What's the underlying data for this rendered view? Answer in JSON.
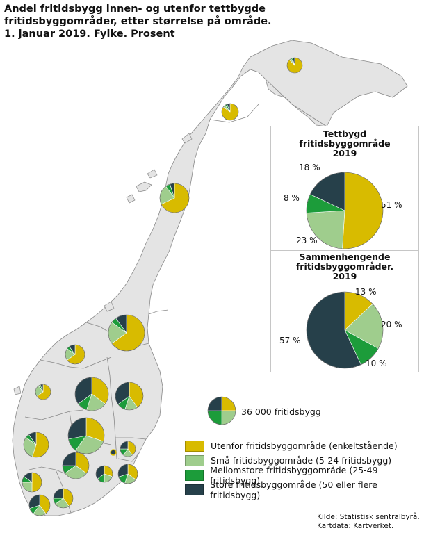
{
  "title": {
    "line1": "Andel fritidsbygg innen- og utenfor tettbygde",
    "line2": "fritidsbyggområder, etter størrelse på område.",
    "line3": "1. januar 2019. Fylke. Prosent"
  },
  "colors": {
    "utenfor": "#d8bb00",
    "sma": "#9fcd8d",
    "mellom": "#1c9c3a",
    "store": "#26404a",
    "land": "#e4e4e4",
    "border": "#888888"
  },
  "inset1": {
    "title_line1": "Tettbygd",
    "title_line2": "fritidsbyggområde",
    "title_line3": "2019",
    "labels": [
      "51 %",
      "23 %",
      "8 %",
      "18 %"
    ]
  },
  "inset2": {
    "title_line1": "Sammenhengende",
    "title_line2": "fritidsbyggområder.",
    "title_line3": "2019",
    "labels": [
      "13 %",
      "20 %",
      "10 %",
      "57 %"
    ]
  },
  "chart_data": [
    {
      "type": "pie",
      "title": "Tettbygd fritidsbyggområde 2019",
      "categories": [
        "Utenfor fritidsbyggområde (enkeltstående)",
        "Små fritidsbyggområde (5-24 fritidsbygg)",
        "Mellomstore fritidsbyggområde (25-49 fritidsbygg)",
        "Store fritidsbyggområde (50 eller flere fritidsbygg)"
      ],
      "values": [
        51,
        23,
        8,
        18
      ]
    },
    {
      "type": "pie",
      "title": "Sammenhengende fritidsbyggområder. 2019",
      "categories": [
        "Utenfor fritidsbyggområde (enkeltstående)",
        "Små fritidsbyggområde (5-24 fritidsbygg)",
        "Mellomstore fritidsbyggområde (25-49 fritidsbygg)",
        "Store fritidsbyggområde (50 eller flere fritidsbygg)"
      ],
      "values": [
        13,
        20,
        10,
        57
      ]
    }
  ],
  "size_legend": {
    "label": "36 000 fritidsbygg",
    "values": [
      25,
      25,
      25,
      25
    ]
  },
  "legend": [
    {
      "key": "utenfor",
      "label": "Utenfor fritidsbyggområde (enkeltstående)"
    },
    {
      "key": "sma",
      "label": "Små fritidsbyggområde (5-24 fritidsbygg)"
    },
    {
      "key": "mellom",
      "label": "Mellomstore fritidsbyggområde (25-49 fritidsbygg)"
    },
    {
      "key": "store",
      "label": "Store fritidsbyggområde (50 eller flere fritidsbygg)"
    }
  ],
  "source": {
    "line1": "Kilde: Statistisk sentralbyrå.",
    "line2": "Kartdata: Kartverket."
  },
  "county_pies": [
    {
      "name": "finnmark",
      "values": [
        88,
        4,
        3,
        5
      ]
    },
    {
      "name": "troms",
      "values": [
        85,
        5,
        4,
        6
      ]
    },
    {
      "name": "nordland",
      "values": [
        68,
        22,
        5,
        5
      ]
    },
    {
      "name": "trondelag",
      "values": [
        65,
        20,
        5,
        10
      ]
    },
    {
      "name": "more-og-romsdal",
      "values": [
        65,
        20,
        5,
        10
      ]
    },
    {
      "name": "sogn-og-fjordane",
      "values": [
        65,
        25,
        4,
        6
      ]
    },
    {
      "name": "oppland",
      "values": [
        35,
        20,
        10,
        35
      ]
    },
    {
      "name": "hedmark",
      "values": [
        40,
        15,
        10,
        35
      ]
    },
    {
      "name": "hordaland",
      "values": [
        55,
        30,
        5,
        10
      ]
    },
    {
      "name": "buskerud",
      "values": [
        30,
        30,
        12,
        28
      ]
    },
    {
      "name": "akershus",
      "values": [
        40,
        20,
        15,
        25
      ]
    },
    {
      "name": "oslo",
      "values": [
        60,
        20,
        10,
        10
      ]
    },
    {
      "name": "ostfold",
      "values": [
        35,
        20,
        15,
        30
      ]
    },
    {
      "name": "rogaland",
      "values": [
        50,
        25,
        10,
        15
      ]
    },
    {
      "name": "telemark",
      "values": [
        35,
        30,
        10,
        25
      ]
    },
    {
      "name": "vestfold",
      "values": [
        30,
        20,
        15,
        35
      ]
    },
    {
      "name": "aust-agder",
      "values": [
        40,
        25,
        10,
        25
      ]
    },
    {
      "name": "vest-agder",
      "values": [
        40,
        20,
        10,
        30
      ]
    }
  ]
}
